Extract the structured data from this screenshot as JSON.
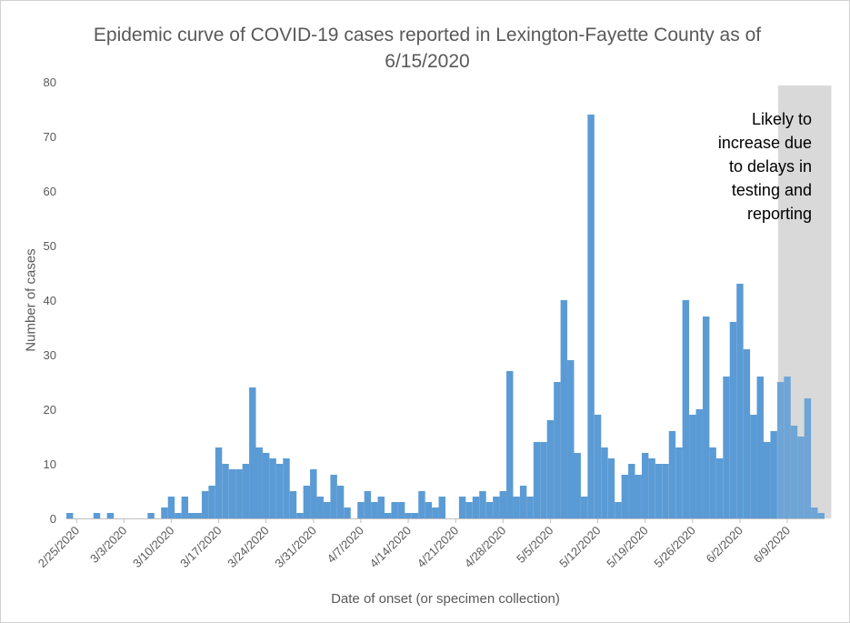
{
  "chart_data": {
    "type": "bar",
    "title": "Epidemic curve of COVID-19 cases reported in Lexington-Fayette County as of 6/15/2020",
    "xlabel": "Date of onset (or specimen collection)",
    "ylabel": "Number of cases",
    "ylim": [
      0,
      80
    ],
    "y_ticks": [
      "0",
      "10",
      "20",
      "30",
      "40",
      "50",
      "60",
      "70",
      "80"
    ],
    "x_tick_labels": [
      "2/25/2020",
      "3/3/2020",
      "3/10/2020",
      "3/17/2020",
      "3/24/2020",
      "3/31/2020",
      "4/7/2020",
      "4/14/2020",
      "4/21/2020",
      "4/28/2020",
      "5/5/2020",
      "5/12/2020",
      "5/19/2020",
      "5/26/2020",
      "6/2/2020",
      "6/9/2020"
    ],
    "first_date": "2/24/2020",
    "last_date": "6/15/2020",
    "values": [
      1,
      0,
      0,
      0,
      1,
      0,
      1,
      0,
      0,
      0,
      0,
      0,
      1,
      0,
      2,
      4,
      1,
      4,
      1,
      1,
      5,
      6,
      13,
      10,
      9,
      9,
      10,
      24,
      13,
      12,
      11,
      10,
      11,
      5,
      1,
      6,
      9,
      4,
      3,
      8,
      6,
      2,
      0,
      3,
      5,
      3,
      4,
      1,
      3,
      3,
      1,
      1,
      5,
      3,
      2,
      4,
      0,
      0,
      4,
      3,
      4,
      5,
      3,
      4,
      5,
      27,
      4,
      6,
      4,
      14,
      14,
      18,
      25,
      40,
      29,
      12,
      4,
      74,
      19,
      13,
      11,
      3,
      8,
      10,
      8,
      12,
      11,
      10,
      10,
      16,
      13,
      40,
      19,
      20,
      37,
      13,
      11,
      26,
      36,
      43,
      31,
      19,
      26,
      14,
      16,
      25,
      26,
      17,
      15,
      22,
      2,
      1
    ],
    "bar_color": "#5b9bd5",
    "grid": false,
    "shaded_region": {
      "start": "6/8/2020",
      "end": "6/15/2020",
      "color": "#d9d9d9",
      "label_lines": [
        "Likely to",
        "increase due",
        "to delays in",
        "testing and",
        "reporting"
      ]
    }
  }
}
